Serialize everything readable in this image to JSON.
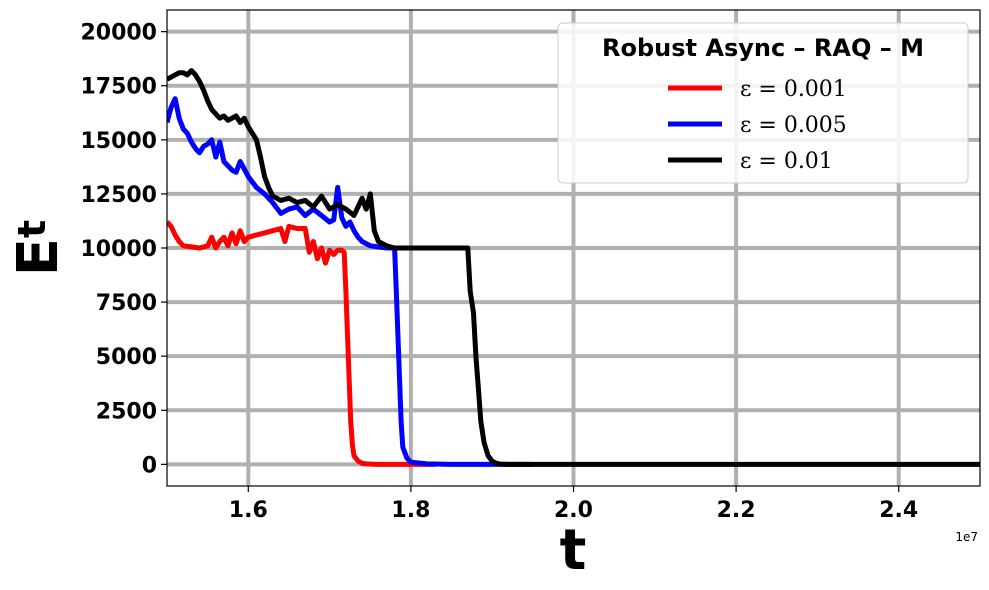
{
  "chart_data": {
    "type": "line",
    "xlabel": "t",
    "ylabel": "E",
    "ylabel_sub": "t",
    "x_offset_label": "1e7",
    "xlim": [
      1.5,
      2.5
    ],
    "ylim": [
      -1000,
      21000
    ],
    "xticks": [
      1.6,
      1.8,
      2.0,
      2.2,
      2.4
    ],
    "xtick_labels": [
      "1.6",
      "1.8",
      "2.0",
      "2.2",
      "2.4"
    ],
    "yticks": [
      0,
      2500,
      5000,
      7500,
      10000,
      12500,
      15000,
      17500,
      20000
    ],
    "ytick_labels": [
      "0",
      "2500",
      "5000",
      "7500",
      "10000",
      "12500",
      "15000",
      "17500",
      "20000"
    ],
    "grid": true,
    "legend": {
      "title": "Robust   Async – RAQ – M",
      "placement": "top-right"
    },
    "series": [
      {
        "name": "ε = 0.001",
        "color": "#ff0000",
        "x": [
          1.5,
          1.505,
          1.51,
          1.515,
          1.52,
          1.53,
          1.54,
          1.55,
          1.555,
          1.56,
          1.565,
          1.57,
          1.575,
          1.58,
          1.585,
          1.59,
          1.595,
          1.6,
          1.61,
          1.62,
          1.63,
          1.64,
          1.645,
          1.65,
          1.66,
          1.67,
          1.675,
          1.68,
          1.685,
          1.69,
          1.695,
          1.7,
          1.705,
          1.71,
          1.715,
          1.718,
          1.72,
          1.722,
          1.724,
          1.726,
          1.728,
          1.73,
          1.735,
          1.74,
          1.745,
          1.75,
          1.76,
          1.78,
          1.8,
          1.83
        ],
        "y": [
          11200,
          11000,
          10600,
          10300,
          10100,
          10050,
          10000,
          10100,
          10500,
          10000,
          10300,
          10500,
          10100,
          10700,
          10200,
          10800,
          10300,
          10500,
          10600,
          10700,
          10800,
          10900,
          10300,
          11000,
          10900,
          10900,
          9800,
          10300,
          9500,
          10000,
          9300,
          9900,
          9700,
          9900,
          9900,
          9800,
          8000,
          6000,
          4000,
          2000,
          900,
          400,
          150,
          50,
          20,
          10,
          0,
          0,
          0,
          0
        ]
      },
      {
        "name": "ε = 0.005",
        "color": "#0000ff",
        "x": [
          1.5,
          1.505,
          1.51,
          1.515,
          1.52,
          1.525,
          1.53,
          1.535,
          1.54,
          1.545,
          1.55,
          1.555,
          1.56,
          1.565,
          1.57,
          1.575,
          1.58,
          1.585,
          1.59,
          1.6,
          1.61,
          1.62,
          1.63,
          1.64,
          1.65,
          1.66,
          1.67,
          1.68,
          1.69,
          1.7,
          1.705,
          1.71,
          1.715,
          1.72,
          1.725,
          1.73,
          1.735,
          1.74,
          1.75,
          1.76,
          1.77,
          1.775,
          1.78,
          1.782,
          1.785,
          1.788,
          1.79,
          1.795,
          1.8,
          1.82,
          1.85,
          1.9,
          1.95
        ],
        "y": [
          15800,
          16500,
          16900,
          16000,
          15500,
          15300,
          14900,
          14600,
          14400,
          14700,
          14800,
          15000,
          14200,
          14900,
          14000,
          13800,
          13600,
          13500,
          14000,
          13300,
          12800,
          12500,
          12100,
          11600,
          11800,
          11900,
          11500,
          11800,
          11500,
          11200,
          11300,
          12800,
          11400,
          11000,
          11200,
          10800,
          10500,
          10300,
          10100,
          10050,
          10000,
          10000,
          10000,
          8000,
          5000,
          2000,
          800,
          300,
          100,
          20,
          0,
          0,
          0
        ]
      },
      {
        "name": "ε = 0.01",
        "color": "#000000",
        "x": [
          1.5,
          1.505,
          1.51,
          1.515,
          1.52,
          1.525,
          1.53,
          1.535,
          1.54,
          1.545,
          1.55,
          1.555,
          1.56,
          1.565,
          1.57,
          1.575,
          1.58,
          1.585,
          1.59,
          1.595,
          1.6,
          1.605,
          1.61,
          1.615,
          1.62,
          1.625,
          1.63,
          1.64,
          1.65,
          1.66,
          1.67,
          1.68,
          1.69,
          1.7,
          1.71,
          1.72,
          1.73,
          1.74,
          1.745,
          1.75,
          1.755,
          1.76,
          1.77,
          1.78,
          1.79,
          1.8,
          1.82,
          1.84,
          1.86,
          1.87,
          1.873,
          1.877,
          1.88,
          1.883,
          1.886,
          1.89,
          1.895,
          1.9,
          1.905,
          1.91,
          1.92,
          1.95,
          2.0,
          2.1,
          2.2,
          2.3,
          2.4,
          2.5
        ],
        "y": [
          17800,
          17900,
          18000,
          18100,
          18100,
          18000,
          18200,
          18000,
          17700,
          17300,
          16800,
          16400,
          16200,
          16000,
          16100,
          15900,
          16000,
          16100,
          15800,
          16000,
          15600,
          15300,
          15000,
          14200,
          13300,
          12800,
          12400,
          12200,
          12300,
          12100,
          12200,
          11900,
          12400,
          11800,
          12000,
          11800,
          11500,
          12300,
          11800,
          12500,
          10800,
          10300,
          10100,
          10000,
          10000,
          10000,
          10000,
          10000,
          10000,
          10000,
          8000,
          7000,
          5000,
          3500,
          2000,
          1000,
          400,
          150,
          50,
          10,
          0,
          0,
          0,
          0,
          0,
          0,
          0,
          0
        ]
      }
    ]
  }
}
